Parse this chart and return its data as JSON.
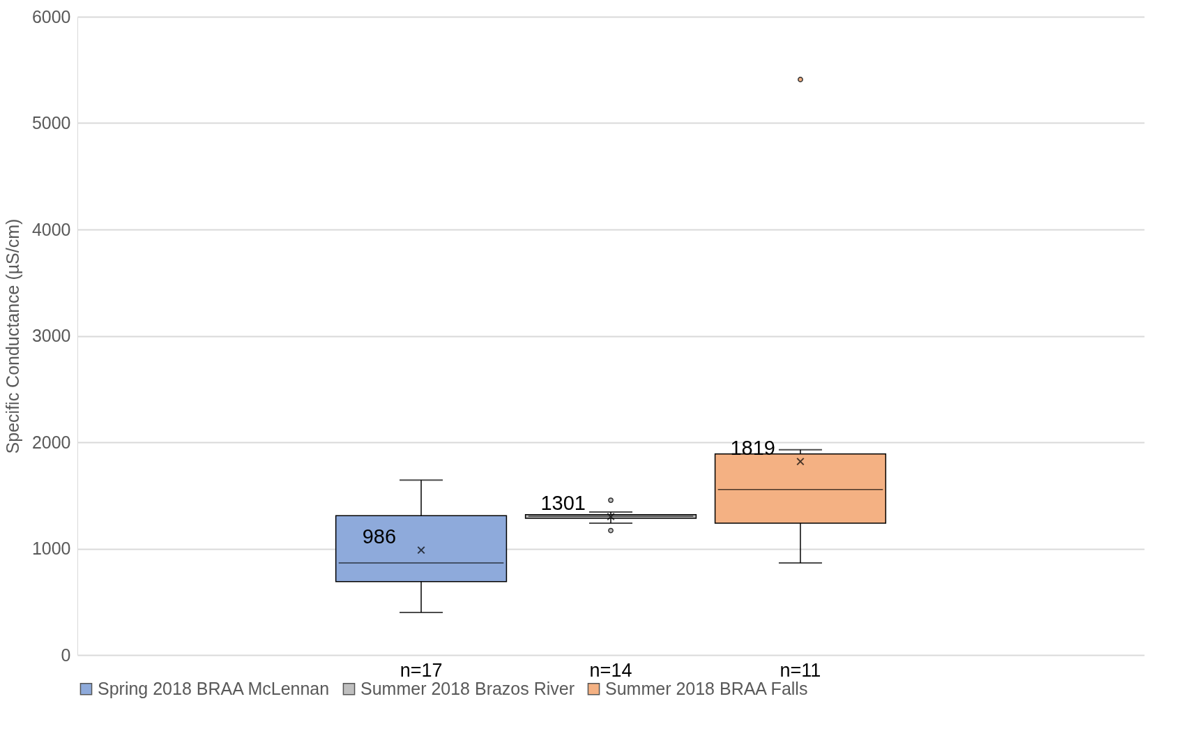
{
  "chart_data": {
    "type": "box",
    "ylabel": "Specific Conductance (µS/cm)",
    "categories": [
      null
    ],
    "ylim": [
      0,
      6000
    ],
    "yticks": [
      0,
      1000,
      2000,
      3000,
      4000,
      5000,
      6000
    ],
    "grid": "y",
    "legend": "bottom",
    "series": [
      {
        "name": "Spring 2018 BRAA McLennan",
        "color": "#8eaadb",
        "boxes": [
          {
            "low": 400,
            "q1": 690,
            "median": 865,
            "q3": 1310,
            "high": 1645,
            "mean": 986
          }
        ]
      },
      {
        "name": "Summer 2018 Brazos River",
        "color": "#bfbfbf",
        "boxes": [
          {
            "low": 1240,
            "q1": 1285,
            "median": 1305,
            "q3": 1320,
            "high": 1345,
            "mean": 1301,
            "outliers": [
              1455,
              1170
            ]
          }
        ]
      },
      {
        "name": "Summer 2018 BRAA Falls",
        "color": "#f4b183",
        "boxes": [
          {
            "low": 865,
            "q1": 1240,
            "median": 1555,
            "q3": 1890,
            "high": 1930,
            "mean": 1819,
            "outliers": [
              5410
            ]
          }
        ]
      }
    ],
    "annotations": [
      "986",
      "1301",
      "1819",
      "n=17",
      "n=14",
      "n=11"
    ]
  }
}
